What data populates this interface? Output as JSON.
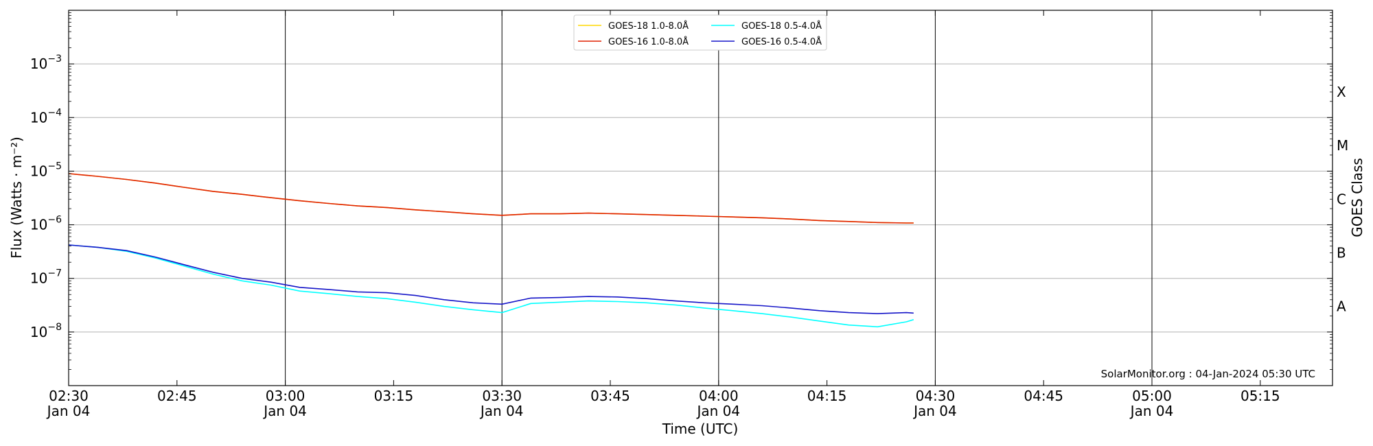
{
  "chart_data": {
    "type": "line",
    "title": "",
    "xlabel": "Time (UTC)",
    "ylabel": "Flux (Watts · m⁻²)",
    "y2label": "GOES Class",
    "yscale": "log",
    "ylim": [
      1e-09,
      0.01
    ],
    "xlim": [
      "2024-01-04 02:30",
      "2024-01-04 05:25"
    ],
    "grid": "horizontal",
    "legend_position": "top-center",
    "annotation": "SolarMonitor.org : 04-Jan-2024 05:30 UTC",
    "x_ticks": [
      {
        "time": "02:30",
        "date": "Jan 04"
      },
      {
        "time": "02:45",
        "date": ""
      },
      {
        "time": "03:00",
        "date": "Jan 04"
      },
      {
        "time": "03:15",
        "date": ""
      },
      {
        "time": "03:30",
        "date": "Jan 04"
      },
      {
        "time": "03:45",
        "date": ""
      },
      {
        "time": "04:00",
        "date": "Jan 04"
      },
      {
        "time": "04:15",
        "date": ""
      },
      {
        "time": "04:30",
        "date": "Jan 04"
      },
      {
        "time": "04:45",
        "date": ""
      },
      {
        "time": "05:00",
        "date": "Jan 04"
      },
      {
        "time": "05:15",
        "date": ""
      }
    ],
    "vertical_lines": [
      "03:00",
      "03:30",
      "04:00",
      "04:30",
      "05:00"
    ],
    "y_ticks": [
      {
        "base": "10",
        "exp": "−8",
        "value": 1e-08
      },
      {
        "base": "10",
        "exp": "−7",
        "value": 1e-07
      },
      {
        "base": "10",
        "exp": "−6",
        "value": 1e-06
      },
      {
        "base": "10",
        "exp": "−5",
        "value": 1e-05
      },
      {
        "base": "10",
        "exp": "−4",
        "value": 0.0001
      },
      {
        "base": "10",
        "exp": "−3",
        "value": 0.001
      }
    ],
    "goes_classes": [
      {
        "label": "A",
        "value": 3e-08
      },
      {
        "label": "B",
        "value": 3e-07
      },
      {
        "label": "C",
        "value": 3e-06
      },
      {
        "label": "M",
        "value": 3e-05
      },
      {
        "label": "X",
        "value": 0.0003
      }
    ],
    "x_times": [
      "02:30",
      "02:34",
      "02:38",
      "02:42",
      "02:46",
      "02:50",
      "02:54",
      "02:58",
      "03:02",
      "03:06",
      "03:10",
      "03:14",
      "03:18",
      "03:22",
      "03:26",
      "03:30",
      "03:34",
      "03:38",
      "03:42",
      "03:46",
      "03:50",
      "03:54",
      "03:58",
      "04:02",
      "04:06",
      "04:10",
      "04:14",
      "04:18",
      "04:22",
      "04:26",
      "04:27"
    ],
    "series": [
      {
        "name": "GOES-18 1.0-8.0Å",
        "color": "#FFD700",
        "values": [
          9e-06,
          8e-06,
          7e-06,
          6e-06,
          5e-06,
          4.2e-06,
          3.7e-06,
          3.2e-06,
          2.8e-06,
          2.5e-06,
          2.25e-06,
          2.1e-06,
          1.9e-06,
          1.75e-06,
          1.6e-06,
          1.5e-06,
          1.6e-06,
          1.6e-06,
          1.65e-06,
          1.6e-06,
          1.55e-06,
          1.5e-06,
          1.45e-06,
          1.4e-06,
          1.35e-06,
          1.28e-06,
          1.2e-06,
          1.15e-06,
          1.1e-06,
          1.08e-06,
          1.08e-06
        ]
      },
      {
        "name": "GOES-16 1.0-8.0Å",
        "color": "#E02000",
        "values": [
          9e-06,
          8e-06,
          7e-06,
          6e-06,
          5e-06,
          4.2e-06,
          3.7e-06,
          3.2e-06,
          2.8e-06,
          2.5e-06,
          2.25e-06,
          2.1e-06,
          1.9e-06,
          1.75e-06,
          1.6e-06,
          1.5e-06,
          1.6e-06,
          1.6e-06,
          1.65e-06,
          1.6e-06,
          1.55e-06,
          1.5e-06,
          1.45e-06,
          1.4e-06,
          1.35e-06,
          1.28e-06,
          1.2e-06,
          1.15e-06,
          1.1e-06,
          1.08e-06,
          1.08e-06
        ]
      },
      {
        "name": "GOES-18 0.5-4.0Å",
        "color": "#00FFFF",
        "values": [
          4.2e-07,
          3.8e-07,
          3.2e-07,
          2.4e-07,
          1.7e-07,
          1.2e-07,
          9e-08,
          7.5e-08,
          5.8e-08,
          5.2e-08,
          4.6e-08,
          4.2e-08,
          3.6e-08,
          3e-08,
          2.6e-08,
          2.3e-08,
          3.4e-08,
          3.6e-08,
          3.8e-08,
          3.7e-08,
          3.5e-08,
          3.2e-08,
          2.8e-08,
          2.5e-08,
          2.2e-08,
          1.9e-08,
          1.6e-08,
          1.35e-08,
          1.25e-08,
          1.55e-08,
          1.7e-08
        ]
      },
      {
        "name": "GOES-16 0.5-4.0Å",
        "color": "#1515C8",
        "values": [
          4.2e-07,
          3.8e-07,
          3.3e-07,
          2.5e-07,
          1.8e-07,
          1.3e-07,
          1e-07,
          8.5e-08,
          6.8e-08,
          6.2e-08,
          5.6e-08,
          5.4e-08,
          4.8e-08,
          4e-08,
          3.5e-08,
          3.3e-08,
          4.3e-08,
          4.4e-08,
          4.6e-08,
          4.5e-08,
          4.2e-08,
          3.8e-08,
          3.5e-08,
          3.3e-08,
          3.1e-08,
          2.8e-08,
          2.5e-08,
          2.3e-08,
          2.2e-08,
          2.3e-08,
          2.25e-08
        ]
      }
    ]
  }
}
